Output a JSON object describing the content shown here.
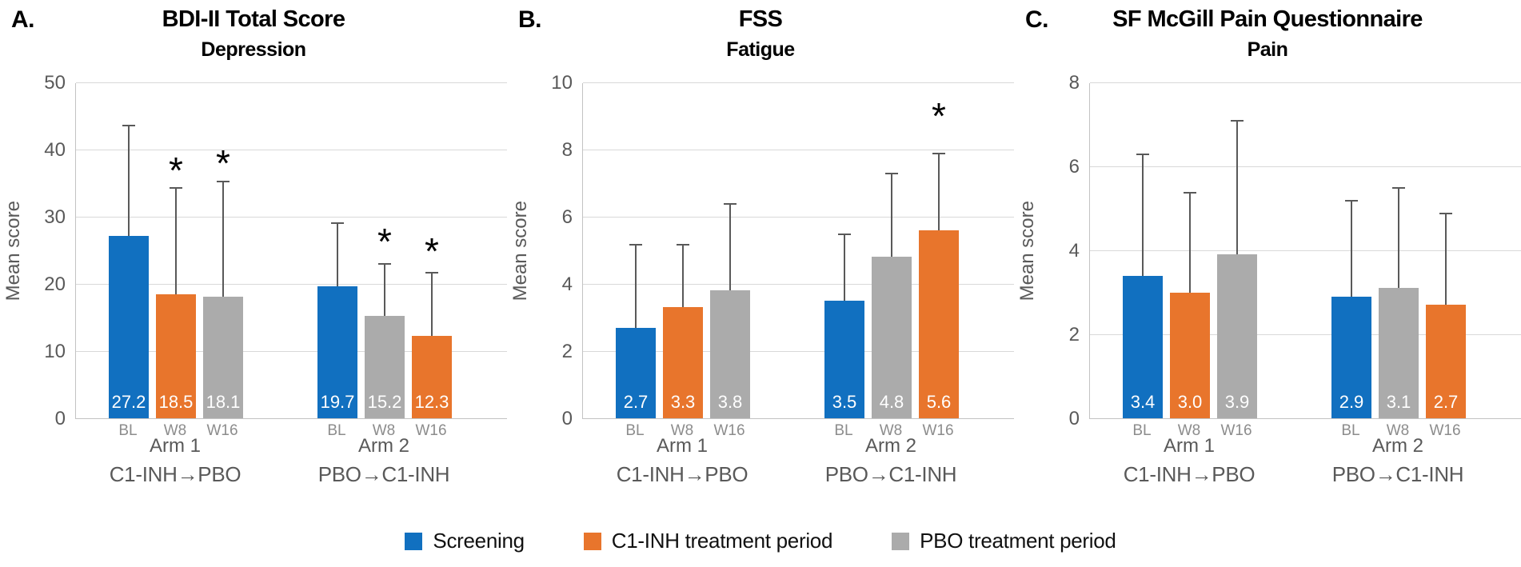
{
  "figure_type": "clinical-outcomes-bar-figure",
  "sig_marker": "*",
  "colors": {
    "screening": "#1170C0",
    "c1_inh": "#E8752C",
    "pbo": "#ABABAB",
    "gridline": "#D9D9D9",
    "error_bar": "#595959"
  },
  "legend": {
    "items": [
      {
        "label": "Screening",
        "color_key": "screening"
      },
      {
        "label": "C1-INH treatment period",
        "color_key": "c1_inh"
      },
      {
        "label": "PBO treatment period",
        "color_key": "pbo"
      }
    ]
  },
  "chart_data": [
    {
      "type": "bar",
      "panel_label": "A.",
      "title": "BDI-II Total Score",
      "subtitle": "Depression",
      "ylabel": "Mean score",
      "ylim": [
        0,
        50
      ],
      "yticks": [
        0,
        10,
        20,
        30,
        40,
        50
      ],
      "grid": true,
      "error_bars": "upper",
      "groups": [
        {
          "arm": "Arm 1",
          "treatment": "C1-INH→PBO",
          "bars": [
            {
              "x": "BL",
              "series": "Screening",
              "color_key": "screening",
              "value": 27.2,
              "label": "27.2",
              "err_top": 43.7
            },
            {
              "x": "W8",
              "series": "C1-INH treatment period",
              "color_key": "c1_inh",
              "value": 18.5,
              "label": "18.5",
              "err_top": 34.4,
              "star": true,
              "star_y": 36.9
            },
            {
              "x": "W16",
              "series": "PBO treatment period",
              "color_key": "pbo",
              "value": 18.1,
              "label": "18.1",
              "err_top": 35.4,
              "star": true,
              "star_y": 38.0
            }
          ]
        },
        {
          "arm": "Arm 2",
          "treatment": "PBO→C1-INH",
          "bars": [
            {
              "x": "BL",
              "series": "Screening",
              "color_key": "screening",
              "value": 19.7,
              "label": "19.7",
              "err_top": 29.2
            },
            {
              "x": "W8",
              "series": "PBO treatment period",
              "color_key": "pbo",
              "value": 15.2,
              "label": "15.2",
              "err_top": 23.1,
              "star": true,
              "star_y": 26.3
            },
            {
              "x": "W16",
              "series": "C1-INH treatment period",
              "color_key": "c1_inh",
              "value": 12.3,
              "label": "12.3",
              "err_top": 21.8,
              "star": true,
              "star_y": 24.9
            }
          ]
        }
      ]
    },
    {
      "type": "bar",
      "panel_label": "B.",
      "title": "FSS",
      "subtitle": "Fatigue",
      "ylabel": "Mean score",
      "ylim": [
        0,
        10
      ],
      "yticks": [
        0,
        2,
        4,
        6,
        8,
        10
      ],
      "grid": true,
      "error_bars": "upper",
      "groups": [
        {
          "arm": "Arm 1",
          "treatment": "C1-INH→PBO",
          "bars": [
            {
              "x": "BL",
              "series": "Screening",
              "color_key": "screening",
              "value": 2.7,
              "label": "2.7",
              "err_top": 5.2
            },
            {
              "x": "W8",
              "series": "C1-INH treatment period",
              "color_key": "c1_inh",
              "value": 3.3,
              "label": "3.3",
              "err_top": 5.2
            },
            {
              "x": "W16",
              "series": "PBO treatment period",
              "color_key": "pbo",
              "value": 3.8,
              "label": "3.8",
              "err_top": 6.4
            }
          ]
        },
        {
          "arm": "Arm 2",
          "treatment": "PBO→C1-INH",
          "bars": [
            {
              "x": "BL",
              "series": "Screening",
              "color_key": "screening",
              "value": 3.5,
              "label": "3.5",
              "err_top": 5.5
            },
            {
              "x": "W8",
              "series": "PBO treatment period",
              "color_key": "pbo",
              "value": 4.8,
              "label": "4.8",
              "err_top": 7.3
            },
            {
              "x": "W16",
              "series": "C1-INH treatment period",
              "color_key": "c1_inh",
              "value": 5.6,
              "label": "5.6",
              "err_top": 7.9,
              "star": true,
              "star_y": 9.0
            }
          ]
        }
      ]
    },
    {
      "type": "bar",
      "panel_label": "C.",
      "title": "SF McGill Pain Questionnaire",
      "subtitle": "Pain",
      "ylabel": "Mean score",
      "ylim": [
        0,
        8
      ],
      "yticks": [
        0,
        2,
        4,
        6,
        8
      ],
      "grid": true,
      "error_bars": "upper",
      "groups": [
        {
          "arm": "Arm 1",
          "treatment": "C1-INH→PBO",
          "bars": [
            {
              "x": "BL",
              "series": "Screening",
              "color_key": "screening",
              "value": 3.4,
              "label": "3.4",
              "err_top": 6.3
            },
            {
              "x": "W8",
              "series": "C1-INH treatment period",
              "color_key": "c1_inh",
              "value": 3.0,
              "label": "3.0",
              "err_top": 5.4
            },
            {
              "x": "W16",
              "series": "PBO treatment period",
              "color_key": "pbo",
              "value": 3.9,
              "label": "3.9",
              "err_top": 7.1
            }
          ]
        },
        {
          "arm": "Arm 2",
          "treatment": "PBO→C1-INH",
          "bars": [
            {
              "x": "BL",
              "series": "Screening",
              "color_key": "screening",
              "value": 2.9,
              "label": "2.9",
              "err_top": 5.2
            },
            {
              "x": "W8",
              "series": "PBO treatment period",
              "color_key": "pbo",
              "value": 3.1,
              "label": "3.1",
              "err_top": 5.5
            },
            {
              "x": "W16",
              "series": "C1-INH treatment period",
              "color_key": "c1_inh",
              "value": 2.7,
              "label": "2.7",
              "err_top": 4.9
            }
          ]
        }
      ]
    }
  ]
}
